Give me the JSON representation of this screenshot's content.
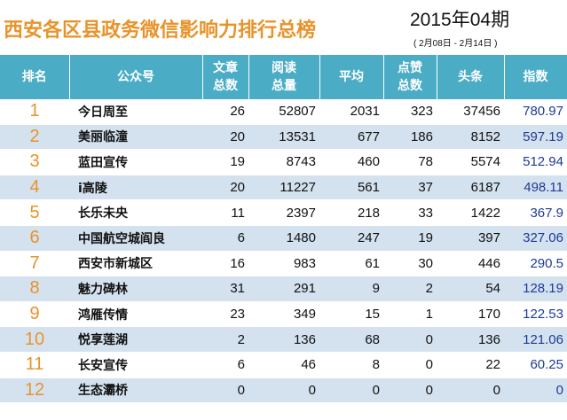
{
  "header": {
    "title": "西安各区县政务微信影响力排行总榜",
    "issue": "2015年04期",
    "date_range": "( 2月08日 - 2月14日 )"
  },
  "colors": {
    "title": "#e8932a",
    "header_bg": "#4bacc6",
    "row_alt_bg": "#d4e2ef",
    "rank": "#e8932a",
    "index": "#1f3a96"
  },
  "table": {
    "columns": [
      {
        "line1": "排名",
        "line2": ""
      },
      {
        "line1": "公众号",
        "line2": ""
      },
      {
        "line1": "文章",
        "line2": "总数"
      },
      {
        "line1": "阅读",
        "line2": "总量"
      },
      {
        "line1": "平均",
        "line2": ""
      },
      {
        "line1": "点赞",
        "line2": "总数"
      },
      {
        "line1": "头条",
        "line2": ""
      },
      {
        "line1": "指数",
        "line2": ""
      }
    ],
    "rows": [
      {
        "rank": "1",
        "name": "今日周至",
        "articles": "26",
        "reads": "52807",
        "avg": "2031",
        "likes": "323",
        "headline": "37456",
        "index": "780.97"
      },
      {
        "rank": "2",
        "name": "美丽临潼",
        "articles": "20",
        "reads": "13531",
        "avg": "677",
        "likes": "186",
        "headline": "8152",
        "index": "597.19"
      },
      {
        "rank": "3",
        "name": "蓝田宣传",
        "articles": "19",
        "reads": "8743",
        "avg": "460",
        "likes": "78",
        "headline": "5574",
        "index": "512.94"
      },
      {
        "rank": "4",
        "name": "i高陵",
        "articles": "20",
        "reads": "11227",
        "avg": "561",
        "likes": "37",
        "headline": "6187",
        "index": "498.11"
      },
      {
        "rank": "5",
        "name": "长乐未央",
        "articles": "11",
        "reads": "2397",
        "avg": "218",
        "likes": "33",
        "headline": "1422",
        "index": "367.9"
      },
      {
        "rank": "6",
        "name": "中国航空城阎良",
        "articles": "6",
        "reads": "1480",
        "avg": "247",
        "likes": "19",
        "headline": "397",
        "index": "327.06"
      },
      {
        "rank": "7",
        "name": "西安市新城区",
        "articles": "16",
        "reads": "983",
        "avg": "61",
        "likes": "30",
        "headline": "446",
        "index": "290.5"
      },
      {
        "rank": "8",
        "name": "魅力碑林",
        "articles": "31",
        "reads": "291",
        "avg": "9",
        "likes": "2",
        "headline": "54",
        "index": "128.19"
      },
      {
        "rank": "9",
        "name": "鸿雁传情",
        "articles": "23",
        "reads": "349",
        "avg": "15",
        "likes": "1",
        "headline": "170",
        "index": "122.53"
      },
      {
        "rank": "10",
        "name": "悦享莲湖",
        "articles": "2",
        "reads": "136",
        "avg": "68",
        "likes": "0",
        "headline": "136",
        "index": "121.06"
      },
      {
        "rank": "11",
        "name": "长安宣传",
        "articles": "6",
        "reads": "46",
        "avg": "8",
        "likes": "0",
        "headline": "22",
        "index": "60.25"
      },
      {
        "rank": "12",
        "name": "生态灞桥",
        "articles": "0",
        "reads": "0",
        "avg": "0",
        "likes": "0",
        "headline": "0",
        "index": "0"
      }
    ]
  }
}
